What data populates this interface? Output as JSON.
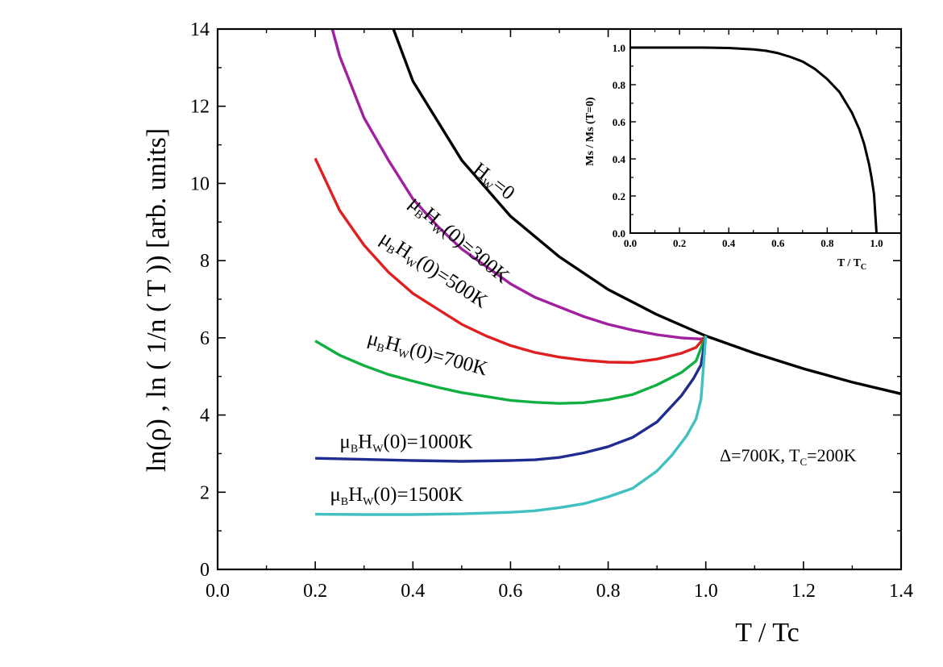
{
  "chart_data": [
    {
      "type": "line",
      "id": "main",
      "xlabel": "T / Tc",
      "ylabel": "ln(ρ) , ln ( 1/n ( T )) [arb. units]",
      "xlim": [
        0.0,
        1.4
      ],
      "ylim": [
        0,
        14
      ],
      "xticks": [
        0.0,
        0.2,
        0.4,
        0.6,
        0.8,
        1.0,
        1.2,
        1.4
      ],
      "xtick_labels": [
        "0.0",
        "0.2",
        "0.4",
        "0.6",
        "0.8",
        "1.0",
        "1.2",
        "1.4"
      ],
      "yticks": [
        0,
        2,
        4,
        6,
        8,
        10,
        12,
        14
      ],
      "ytick_labels": [
        "0",
        "2",
        "4",
        "6",
        "8",
        "10",
        "12",
        "14"
      ],
      "grid": false,
      "annotation": {
        "prefix": "Δ=700K, T",
        "sub": "C",
        "suffix": "=200K"
      },
      "series": [
        {
          "name": "H_W=0",
          "color": "#000000",
          "label": {
            "main": "H",
            "sub": "W",
            "rest": "=0",
            "at": [
              0.52,
              10.3
            ],
            "angle": 38
          },
          "x": [
            0.36,
            0.4,
            0.5,
            0.6,
            0.7,
            0.8,
            0.9,
            1.0,
            1.1,
            1.2,
            1.3,
            1.4
          ],
          "y": [
            14.0,
            12.65,
            10.6,
            9.15,
            8.1,
            7.25,
            6.6,
            6.05,
            5.6,
            5.2,
            4.85,
            4.55
          ]
        },
        {
          "name": "μBHW(0)=300K",
          "color": "#a020a0",
          "label": {
            "mu": "μ",
            "musub": "B",
            "main": "H",
            "sub": "W",
            "rest": "(0)=300K",
            "at": [
              0.39,
              9.45
            ],
            "angle": 40
          },
          "x": [
            0.235,
            0.25,
            0.3,
            0.35,
            0.4,
            0.45,
            0.5,
            0.55,
            0.6,
            0.65,
            0.7,
            0.75,
            0.8,
            0.85,
            0.9,
            0.95,
            0.99,
            1.0
          ],
          "y": [
            14.0,
            13.3,
            11.7,
            10.6,
            9.6,
            8.9,
            8.3,
            7.85,
            7.4,
            7.05,
            6.8,
            6.55,
            6.35,
            6.2,
            6.08,
            6.0,
            5.97,
            6.0
          ]
        },
        {
          "name": "μBHW(0)=500K",
          "color": "#e02020",
          "label": {
            "mu": "μ",
            "musub": "B",
            "main": "H",
            "sub": "W",
            "rest": "(0)=500K",
            "at": [
              0.33,
              8.5
            ],
            "angle": 33
          },
          "x": [
            0.2,
            0.25,
            0.3,
            0.35,
            0.4,
            0.45,
            0.5,
            0.55,
            0.6,
            0.65,
            0.7,
            0.75,
            0.8,
            0.85,
            0.9,
            0.95,
            0.98,
            1.0
          ],
          "y": [
            10.65,
            9.3,
            8.4,
            7.7,
            7.15,
            6.75,
            6.35,
            6.05,
            5.8,
            5.62,
            5.5,
            5.42,
            5.37,
            5.36,
            5.45,
            5.6,
            5.75,
            6.05
          ]
        },
        {
          "name": "μBHW(0)=700K",
          "color": "#10b040",
          "label": {
            "mu": "μ",
            "musub": "B",
            "main": "H",
            "sub": "W",
            "rest": "(0)=700K",
            "at": [
              0.305,
              5.85
            ],
            "angle": 15
          },
          "x": [
            0.2,
            0.25,
            0.3,
            0.35,
            0.4,
            0.45,
            0.5,
            0.55,
            0.6,
            0.65,
            0.7,
            0.75,
            0.8,
            0.85,
            0.9,
            0.95,
            0.98,
            1.0
          ],
          "y": [
            5.92,
            5.55,
            5.28,
            5.05,
            4.88,
            4.72,
            4.58,
            4.48,
            4.38,
            4.33,
            4.3,
            4.32,
            4.4,
            4.53,
            4.78,
            5.1,
            5.4,
            6.05
          ]
        },
        {
          "name": "μBHW(0)=1000K",
          "color": "#202c90",
          "label": {
            "mu": "μ",
            "musub": "B",
            "main": "H",
            "sub": "W",
            "rest": "(0)=1000K",
            "at": [
              0.25,
              3.15
            ],
            "angle": 0
          },
          "x": [
            0.2,
            0.3,
            0.4,
            0.5,
            0.6,
            0.65,
            0.7,
            0.75,
            0.8,
            0.85,
            0.9,
            0.95,
            0.975,
            0.99,
            1.0
          ],
          "y": [
            2.88,
            2.85,
            2.82,
            2.8,
            2.82,
            2.84,
            2.9,
            3.02,
            3.18,
            3.42,
            3.82,
            4.5,
            4.95,
            5.3,
            6.05
          ]
        },
        {
          "name": "μBHW(0)=1500K",
          "color": "#40c0c0",
          "label": {
            "mu": "μ",
            "musub": "B",
            "main": "H",
            "sub": "W",
            "rest": "(0)=1500K",
            "at": [
              0.23,
              1.78
            ],
            "angle": 0
          },
          "x": [
            0.2,
            0.3,
            0.4,
            0.5,
            0.6,
            0.65,
            0.7,
            0.75,
            0.8,
            0.85,
            0.9,
            0.93,
            0.96,
            0.98,
            0.99,
            1.0
          ],
          "y": [
            1.43,
            1.42,
            1.42,
            1.44,
            1.48,
            1.52,
            1.6,
            1.7,
            1.88,
            2.1,
            2.55,
            2.95,
            3.45,
            3.9,
            4.4,
            6.05
          ]
        }
      ]
    },
    {
      "type": "line",
      "id": "inset",
      "xlabel": {
        "prefix": "T / T",
        "sub": "C"
      },
      "ylabel": "Ms / Ms (T=0)",
      "xlim": [
        0.0,
        1.1
      ],
      "ylim": [
        0.0,
        1.1
      ],
      "xticks": [
        0.0,
        0.2,
        0.4,
        0.6,
        0.8,
        1.0
      ],
      "xtick_labels": [
        "0.0",
        "0.2",
        "0.4",
        "0.6",
        "0.8",
        "1.0"
      ],
      "yticks": [
        0.0,
        0.2,
        0.4,
        0.6,
        0.8,
        1.0
      ],
      "ytick_labels": [
        "0.0",
        "0.2",
        "0.4",
        "0.6",
        "0.8",
        "1.0"
      ],
      "grid": false,
      "series": [
        {
          "name": "Ms / Ms (T=0)",
          "color": "#000000",
          "x": [
            0.0,
            0.1,
            0.2,
            0.3,
            0.4,
            0.5,
            0.55,
            0.6,
            0.65,
            0.7,
            0.75,
            0.8,
            0.85,
            0.9,
            0.93,
            0.95,
            0.97,
            0.98,
            0.99,
            1.0
          ],
          "y": [
            1.0,
            1.0,
            1.0,
            1.0,
            0.998,
            0.99,
            0.983,
            0.97,
            0.95,
            0.925,
            0.885,
            0.83,
            0.76,
            0.65,
            0.56,
            0.48,
            0.37,
            0.3,
            0.21,
            0.0
          ]
        }
      ]
    }
  ]
}
